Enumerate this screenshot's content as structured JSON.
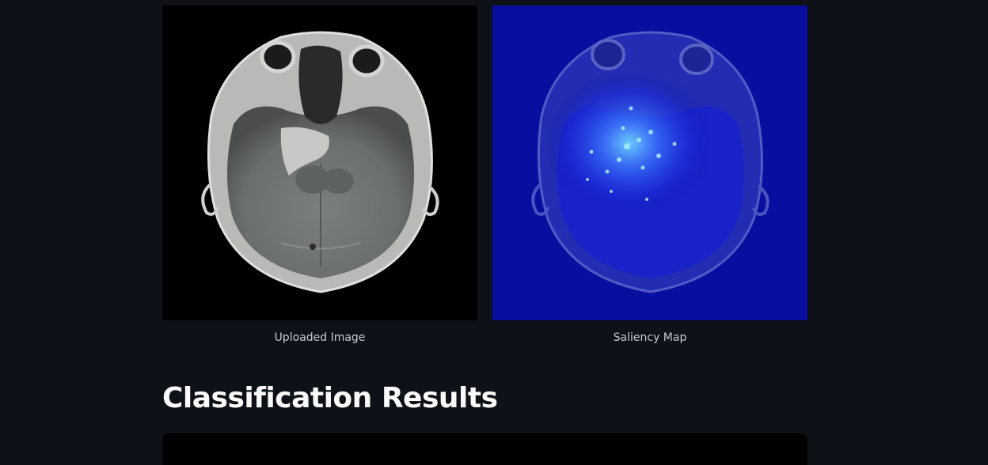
{
  "images": {
    "uploaded_caption": "Uploaded Image",
    "saliency_caption": "Saliency Map"
  },
  "results": {
    "heading": "Classification Results"
  },
  "colors": {
    "background": "#0e1117",
    "saliency_base": "#0a0ea0",
    "saliency_hot": "#7fd8ff"
  }
}
